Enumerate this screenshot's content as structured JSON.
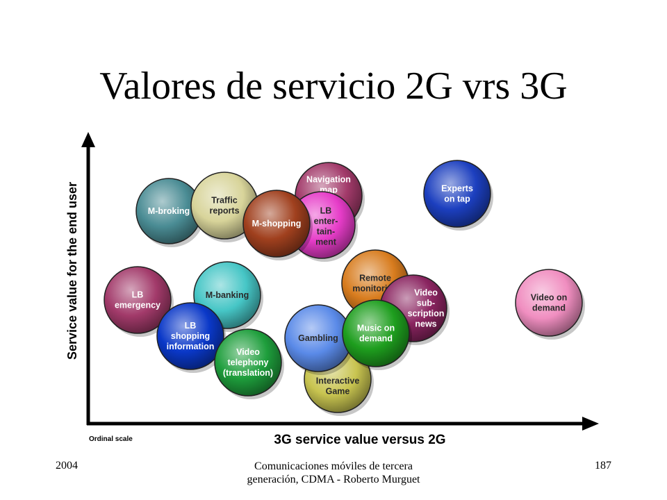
{
  "slide": {
    "title": "Valores de servicio 2G vrs 3G"
  },
  "diagram": {
    "y_axis_label": "Service value for the end user",
    "x_axis_label": "3G service value versus 2G",
    "scale_note": "Ordinal scale",
    "bubbles": [
      {
        "id": "m-broking",
        "lines": [
          "M-broking"
        ],
        "color": "#4a8c94",
        "text": "light"
      },
      {
        "id": "traffic-reports",
        "lines": [
          "Traffic",
          "reports"
        ],
        "color": "#d8d49a",
        "text": "dark"
      },
      {
        "id": "navigation-map",
        "lines": [
          "Navigation",
          "map"
        ],
        "color": "#a23a6a",
        "text": "light"
      },
      {
        "id": "lb-entertainment",
        "lines": [
          "LB",
          "enter-",
          "tain-",
          "ment"
        ],
        "color": "#e63cc8",
        "text": "dark"
      },
      {
        "id": "m-shopping",
        "lines": [
          "M-shopping"
        ],
        "color": "#a0401e",
        "text": "light"
      },
      {
        "id": "experts-on-tap",
        "lines": [
          "Experts",
          "on tap"
        ],
        "color": "#1c3fbf",
        "text": "light"
      },
      {
        "id": "lb-emergency",
        "lines": [
          "LB",
          "emergency"
        ],
        "color": "#a23a6a",
        "text": "light"
      },
      {
        "id": "m-banking",
        "lines": [
          "M-banking"
        ],
        "color": "#46c6c6",
        "text": "dark"
      },
      {
        "id": "remote-monitoring",
        "lines": [
          "Remote",
          "monitoring"
        ],
        "color": "#d87c1e",
        "text": "dark"
      },
      {
        "id": "video-subscription-news",
        "lines": [
          "Video",
          "sub-",
          "scription",
          "news"
        ],
        "color": "#8a2460",
        "text": "light"
      },
      {
        "id": "video-on-demand",
        "lines": [
          "Video on",
          "demand"
        ],
        "color": "#f08ec0",
        "text": "dark"
      },
      {
        "id": "lb-shopping-information",
        "lines": [
          "LB",
          "shopping",
          "information"
        ],
        "color": "#0a38c8",
        "text": "light"
      },
      {
        "id": "video-telephony",
        "lines": [
          "Video",
          "telephony",
          "(translation)"
        ],
        "color": "#1e9e3c",
        "text": "light"
      },
      {
        "id": "interactive-game",
        "lines": [
          "Interactive",
          "Game"
        ],
        "color": "#c8c450",
        "text": "dark"
      },
      {
        "id": "gambling",
        "lines": [
          "Gambling"
        ],
        "color": "#5a8ae8",
        "text": "dark"
      },
      {
        "id": "music-on-demand",
        "lines": [
          "Music on",
          "demand"
        ],
        "color": "#1e9e1e",
        "text": "light"
      }
    ]
  },
  "footer": {
    "year": "2004",
    "source": "Comunicaciones móviles de tercera generación, CDMA - Roberto Murguet",
    "page": "187"
  }
}
